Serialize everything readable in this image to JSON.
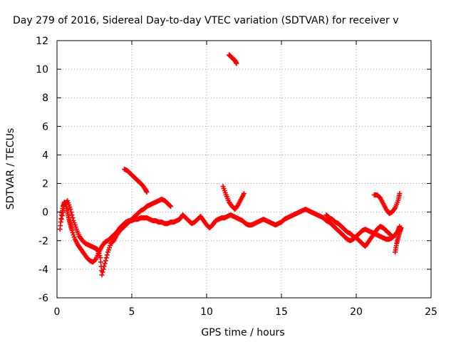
{
  "chart_data": {
    "type": "scatter",
    "title": "Day 279 of 2016, Sidereal Day-to-day VTEC variation (SDTVAR) for receiver v",
    "xlabel": "GPS time / hours",
    "ylabel": "SDTVAR / TECUs",
    "xlim": [
      0,
      25
    ],
    "ylim": [
      -6,
      12
    ],
    "xticks": [
      "0",
      "5",
      "10",
      "15",
      "20",
      "25"
    ],
    "yticks": [
      "-6",
      "-4",
      "-2",
      "0",
      "2",
      "4",
      "6",
      "8",
      "10",
      "12"
    ],
    "grid": true,
    "marker": "plus",
    "color": "#ff0000",
    "series": [
      {
        "values_x": [
          0.2,
          0.3,
          0.4,
          0.5,
          0.6,
          0.7,
          0.8,
          0.9,
          1.0,
          1.2,
          1.4,
          1.6,
          1.8,
          2.0,
          2.2,
          2.4,
          2.6,
          2.8,
          3.0,
          3.2,
          3.4,
          3.6,
          3.8,
          4.0,
          4.2,
          4.4,
          4.6,
          4.8,
          5.0,
          5.2,
          5.4,
          5.6,
          5.8,
          6.0,
          6.2,
          6.4,
          6.6,
          6.8,
          7.0,
          7.2,
          7.4,
          7.6,
          7.8,
          8.0,
          8.2,
          8.4,
          8.6,
          8.8,
          9.0,
          9.2,
          9.4,
          9.6,
          9.8,
          10.0,
          10.2,
          10.4,
          10.6,
          10.8,
          11.0,
          11.2,
          11.4,
          11.6,
          11.8,
          12.0,
          12.2,
          12.4,
          12.6,
          12.8,
          13.0,
          13.2,
          13.4,
          13.6,
          13.8,
          14.0,
          14.2,
          14.4,
          14.6,
          14.8,
          15.0,
          15.2,
          15.4,
          15.6,
          15.8,
          16.0,
          16.2,
          16.4,
          16.6,
          16.8,
          17.0,
          17.2,
          17.4,
          17.6,
          17.8,
          18.0,
          18.2,
          18.4,
          18.6,
          18.8,
          19.0,
          19.2,
          19.4,
          19.6,
          19.8,
          20.0,
          20.2,
          20.4,
          20.6,
          20.8,
          21.0,
          21.2,
          21.4,
          21.6,
          21.8,
          22.0,
          22.2,
          22.4,
          22.6,
          22.8,
          22.9
        ],
        "values_y": [
          -1.2,
          -0.2,
          0.4,
          0.7,
          0.5,
          0.0,
          -0.5,
          -0.9,
          -1.3,
          -1.9,
          -2.3,
          -2.6,
          -2.9,
          -3.2,
          -3.4,
          -3.5,
          -3.3,
          -2.8,
          -2.4,
          -2.1,
          -2.0,
          -1.8,
          -1.6,
          -1.4,
          -1.1,
          -0.9,
          -0.7,
          -0.6,
          -0.6,
          -0.5,
          -0.5,
          -0.4,
          -0.4,
          -0.4,
          -0.5,
          -0.6,
          -0.6,
          -0.7,
          -0.7,
          -0.8,
          -0.8,
          -0.7,
          -0.7,
          -0.6,
          -0.5,
          -0.2,
          -0.4,
          -0.6,
          -0.8,
          -0.7,
          -0.5,
          -0.3,
          -0.6,
          -0.9,
          -1.1,
          -0.9,
          -0.6,
          -0.5,
          -0.4,
          -0.4,
          -0.3,
          -0.2,
          -0.3,
          -0.4,
          -0.5,
          -0.6,
          -0.8,
          -0.9,
          -0.9,
          -0.8,
          -0.7,
          -0.6,
          -0.5,
          -0.6,
          -0.7,
          -0.8,
          -0.9,
          -0.8,
          -0.7,
          -0.5,
          -0.4,
          -0.3,
          -0.2,
          -0.1,
          0.0,
          0.1,
          0.2,
          0.1,
          0.0,
          -0.1,
          -0.2,
          -0.3,
          -0.4,
          -0.6,
          -0.7,
          -0.9,
          -1.1,
          -1.3,
          -1.5,
          -1.7,
          -1.9,
          -2.0,
          -1.9,
          -1.7,
          -1.5,
          -1.3,
          -1.2,
          -1.3,
          -1.4,
          -1.5,
          -1.6,
          -1.7,
          -1.8,
          -1.9,
          -1.9,
          -1.8,
          -1.6,
          -1.3,
          -1.0
        ]
      },
      {
        "values_x": [
          0.3,
          0.5,
          0.7,
          0.9,
          1.1,
          1.3,
          1.5,
          1.7,
          1.9,
          2.1,
          2.3,
          2.5,
          2.7,
          2.9,
          3.0,
          3.2,
          3.4,
          3.6,
          3.8,
          4.0,
          4.2,
          4.4,
          4.6,
          4.8,
          5.0,
          5.2,
          5.4,
          5.6,
          5.8,
          6.0,
          6.2,
          6.4,
          6.6,
          6.8,
          7.0,
          7.2,
          7.4,
          7.6
        ],
        "values_y": [
          -0.5,
          0.5,
          0.8,
          0.2,
          -0.6,
          -1.2,
          -1.7,
          -2.0,
          -2.2,
          -2.3,
          -2.4,
          -2.5,
          -2.6,
          -3.2,
          -4.4,
          -3.6,
          -2.8,
          -2.2,
          -2.0,
          -1.6,
          -1.3,
          -1.1,
          -0.9,
          -0.7,
          -0.5,
          -0.3,
          -0.1,
          0.1,
          0.2,
          0.4,
          0.5,
          0.6,
          0.7,
          0.8,
          0.9,
          0.8,
          0.6,
          0.4
        ]
      },
      {
        "values_x": [
          4.5,
          4.7,
          4.9,
          5.1,
          5.3,
          5.5,
          5.7,
          5.9,
          6.0
        ],
        "values_y": [
          3.0,
          2.9,
          2.7,
          2.5,
          2.3,
          2.1,
          1.9,
          1.6,
          1.4
        ]
      },
      {
        "values_x": [
          11.5,
          11.6,
          11.7,
          11.8,
          11.9,
          12.0
        ],
        "values_y": [
          11.0,
          10.9,
          10.8,
          10.7,
          10.6,
          10.4
        ]
      },
      {
        "values_x": [
          11.1,
          11.3,
          11.5,
          11.7,
          11.9,
          12.1,
          12.3,
          12.5
        ],
        "values_y": [
          1.8,
          1.2,
          0.7,
          0.4,
          0.2,
          0.5,
          0.9,
          1.3
        ]
      },
      {
        "values_x": [
          18.0,
          18.2,
          18.4,
          18.6,
          18.8,
          19.0,
          19.2,
          19.4,
          19.6,
          19.8,
          20.0,
          20.2,
          20.4,
          20.6,
          20.8,
          21.0,
          21.2,
          21.4,
          21.6,
          21.8,
          22.0,
          22.2,
          22.4
        ],
        "values_y": [
          -0.2,
          -0.4,
          -0.5,
          -0.7,
          -0.8,
          -1.0,
          -1.2,
          -1.4,
          -1.5,
          -1.7,
          -1.8,
          -2.0,
          -2.2,
          -2.4,
          -2.1,
          -1.8,
          -1.5,
          -1.2,
          -1.0,
          -1.1,
          -1.3,
          -1.5,
          -1.7
        ]
      },
      {
        "values_x": [
          21.2,
          21.4,
          21.6,
          21.8,
          22.0,
          22.2,
          22.4,
          22.6,
          22.8,
          22.9
        ],
        "values_y": [
          1.2,
          1.2,
          1.0,
          0.6,
          0.2,
          -0.1,
          0.0,
          0.3,
          0.8,
          1.3
        ]
      },
      {
        "values_x": [
          22.6,
          22.7,
          22.8,
          22.9,
          23.0
        ],
        "values_y": [
          -2.8,
          -2.2,
          -1.8,
          -1.4,
          -1.1
        ]
      }
    ]
  }
}
